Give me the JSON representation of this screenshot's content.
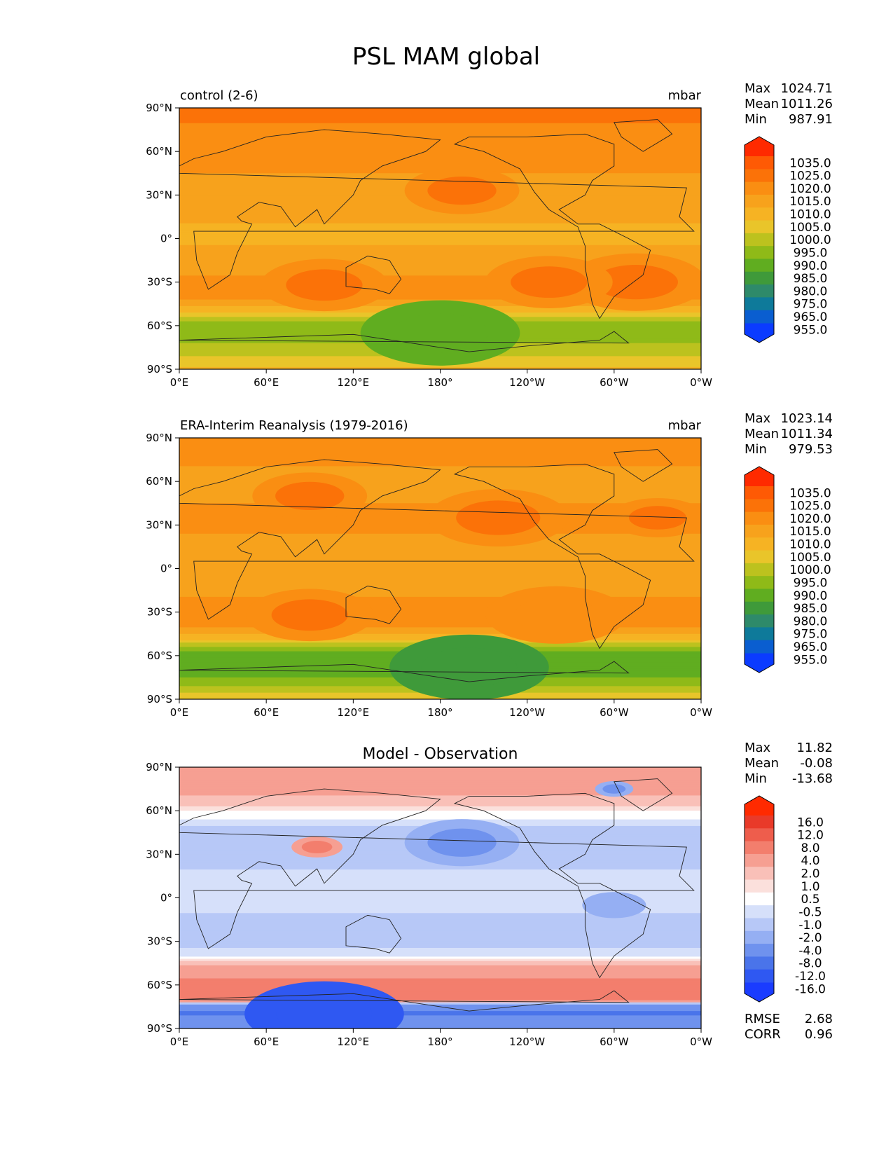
{
  "page": {
    "title": "PSL MAM global"
  },
  "colorbars": {
    "absolute": {
      "colors": [
        "#0b3bff",
        "#0a5ed0",
        "#0e7a9a",
        "#2e8a6a",
        "#3f9a3a",
        "#60ad20",
        "#8fba18",
        "#bcc21e",
        "#e9c52a",
        "#f6b323",
        "#f7a21c",
        "#fa8e12",
        "#fb7208",
        "#fe5a04",
        "#ff2a00"
      ],
      "labels": [
        "1035.0",
        "1025.0",
        "1020.0",
        "1015.0",
        "1010.0",
        "1005.0",
        "1000.0",
        "995.0",
        "990.0",
        "985.0",
        "980.0",
        "975.0",
        "965.0",
        "955.0"
      ]
    },
    "difference": {
      "colors": [
        "#1a3cff",
        "#2f58f2",
        "#4a74ea",
        "#6f92ee",
        "#95aff3",
        "#b7c8f7",
        "#d6e0fa",
        "#ffffff",
        "#fbe0dc",
        "#f9c0b8",
        "#f69f92",
        "#f37e6d",
        "#ee5d4c",
        "#e93a29",
        "#ff2a00"
      ],
      "labels": [
        "16.0",
        "12.0",
        "8.0",
        "4.0",
        "2.0",
        "1.0",
        "0.5",
        "-0.5",
        "-1.0",
        "-2.0",
        "-4.0",
        "-8.0",
        "-12.0",
        "-16.0"
      ]
    }
  },
  "panels": [
    {
      "left_title": "control (2-6)",
      "center_title": "",
      "units": "mbar",
      "stats": {
        "max_label": "Max",
        "max": "1024.71",
        "mean_label": "Mean",
        "mean": "1011.26",
        "min_label": "Min",
        "min": "987.91"
      },
      "colorbar": "absolute"
    },
    {
      "left_title": "ERA-Interim Reanalysis (1979-2016)",
      "center_title": "",
      "units": "mbar",
      "stats": {
        "max_label": "Max",
        "max": "1023.14",
        "mean_label": "Mean",
        "mean": "1011.34",
        "min_label": "Min",
        "min": "979.53"
      },
      "colorbar": "absolute"
    },
    {
      "left_title": "",
      "center_title": "Model - Observation",
      "units": "",
      "stats": {
        "max_label": "Max",
        "max": "11.82",
        "mean_label": "Mean",
        "mean": "-0.08",
        "min_label": "Min",
        "min": "-13.68"
      },
      "colorbar": "difference",
      "extra_stats": {
        "rmse_label": "RMSE",
        "rmse": "2.68",
        "corr_label": "CORR",
        "corr": "0.96"
      }
    }
  ],
  "chart_data": [
    {
      "type": "heatmap",
      "title": "control (2-6)",
      "units": "mbar",
      "x_ticks": [
        "0°E",
        "60°E",
        "120°E",
        "180°",
        "120°W",
        "60°W",
        "0°W"
      ],
      "y_ticks": [
        "90°N",
        "60°N",
        "30°N",
        "0°",
        "30°S",
        "60°S",
        "90°S"
      ],
      "xlim": [
        0,
        360
      ],
      "ylim": [
        -90,
        90
      ],
      "zonal_profile": {
        "lat": [
          90,
          80,
          70,
          60,
          50,
          40,
          30,
          20,
          10,
          0,
          -10,
          -20,
          -30,
          -40,
          -45,
          -50,
          -55,
          -60,
          -65,
          -70,
          -75,
          -80,
          -85,
          -90
        ],
        "value": [
          1021,
          1020,
          1017,
          1015,
          1016,
          1014,
          1015,
          1012,
          1010,
          1009,
          1011,
          1014,
          1016,
          1016,
          1013,
          1006,
          997,
          991,
          992,
          994,
          996,
          999,
          1003,
          1006
        ]
      },
      "stats": {
        "max": 1024.71,
        "mean": 1011.26,
        "min": 987.91
      }
    },
    {
      "type": "heatmap",
      "title": "ERA-Interim Reanalysis (1979-2016)",
      "units": "mbar",
      "x_ticks": [
        "0°E",
        "60°E",
        "120°E",
        "180°",
        "120°W",
        "60°W",
        "0°W"
      ],
      "y_ticks": [
        "90°N",
        "60°N",
        "30°N",
        "0°",
        "30°S",
        "60°S",
        "90°S"
      ],
      "xlim": [
        0,
        360
      ],
      "ylim": [
        -90,
        90
      ],
      "zonal_profile": {
        "lat": [
          90,
          80,
          70,
          60,
          50,
          40,
          30,
          20,
          10,
          0,
          -10,
          -20,
          -30,
          -40,
          -45,
          -50,
          -55,
          -60,
          -65,
          -70,
          -75,
          -80,
          -85,
          -90
        ],
        "value": [
          1018,
          1017,
          1015,
          1013,
          1014,
          1016,
          1017,
          1014,
          1011,
          1010,
          1012,
          1015,
          1017,
          1015,
          1011,
          1003,
          993,
          986,
          985,
          987,
          990,
          994,
          999,
          1004
        ]
      },
      "stats": {
        "max": 1023.14,
        "mean": 1011.34,
        "min": 979.53
      }
    },
    {
      "type": "heatmap",
      "title": "Model - Observation",
      "units": "",
      "x_ticks": [
        "0°E",
        "60°E",
        "120°E",
        "180°",
        "120°W",
        "60°W",
        "0°W"
      ],
      "y_ticks": [
        "90°N",
        "60°N",
        "30°N",
        "0°",
        "30°S",
        "60°S",
        "90°S"
      ],
      "xlim": [
        0,
        360
      ],
      "ylim": [
        -90,
        90
      ],
      "zonal_profile": {
        "lat": [
          90,
          80,
          70,
          60,
          50,
          40,
          30,
          20,
          10,
          0,
          -10,
          -20,
          -30,
          -40,
          -45,
          -50,
          -55,
          -60,
          -65,
          -70,
          -75,
          -80,
          -85,
          -90
        ],
        "value": [
          3,
          3,
          2,
          0.5,
          -1,
          -2,
          -1.5,
          -1,
          -0.7,
          -0.8,
          -1,
          -1.5,
          -1.5,
          -0.5,
          1.5,
          3,
          4,
          5,
          6,
          5,
          -6,
          -9,
          -6,
          -4
        ]
      },
      "stats": {
        "max": 11.82,
        "mean": -0.08,
        "min": -13.68,
        "rmse": 2.68,
        "corr": 0.96
      }
    }
  ]
}
